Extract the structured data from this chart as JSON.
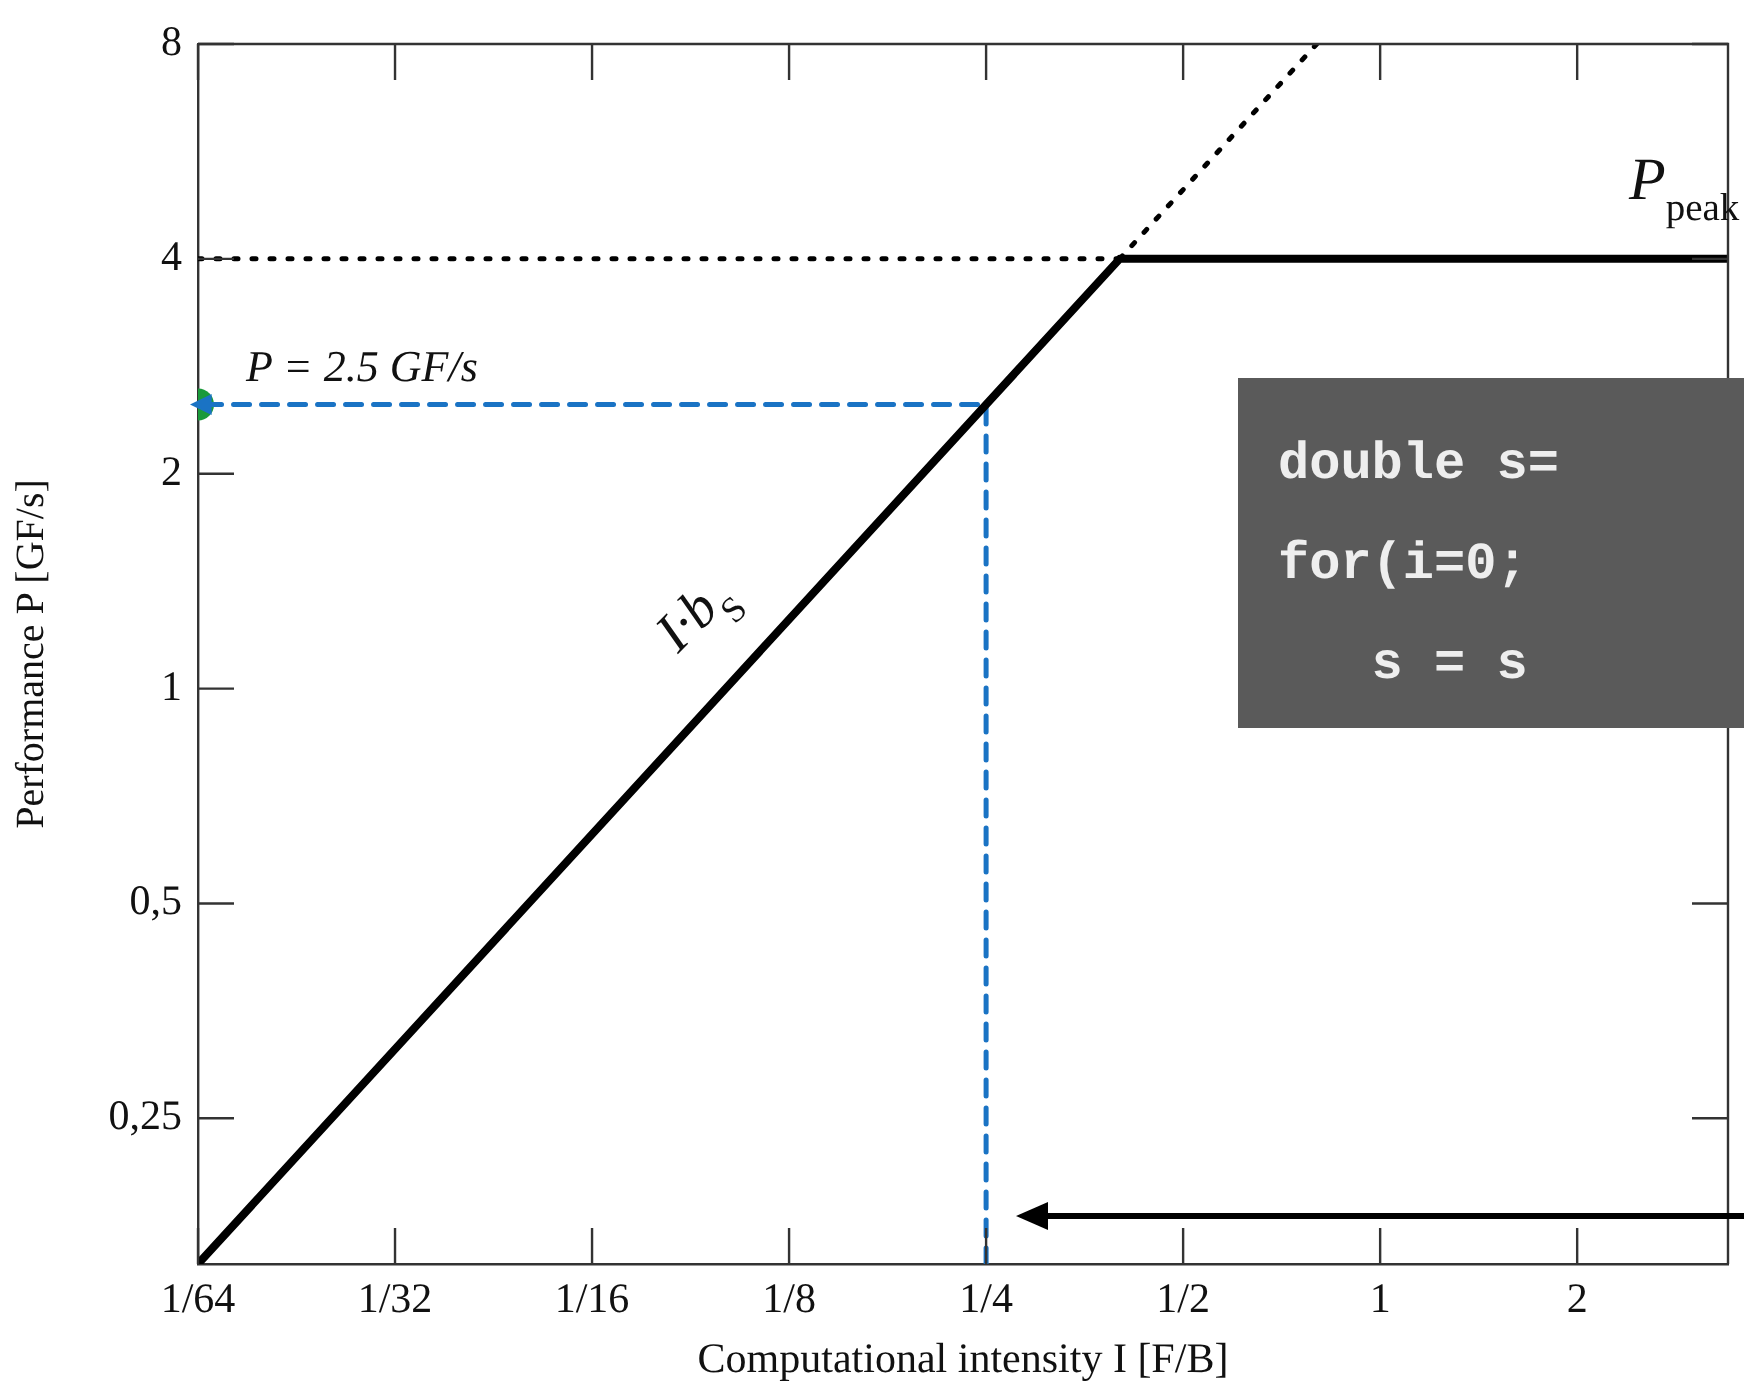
{
  "chart_data": {
    "type": "line",
    "xlabel": "Computational intensity I [F/B]",
    "ylabel": "Performance P [GF/s]",
    "log": "xy",
    "xlim": [
      0.015625,
      3.4
    ],
    "ylim": [
      0.15625,
      8
    ],
    "xticks": [
      {
        "value": 0.015625,
        "label": "1/64"
      },
      {
        "value": 0.03125,
        "label": "1/32"
      },
      {
        "value": 0.0625,
        "label": "1/16"
      },
      {
        "value": 0.125,
        "label": "1/8"
      },
      {
        "value": 0.25,
        "label": "1/4"
      },
      {
        "value": 0.5,
        "label": "1/2"
      },
      1,
      2
    ],
    "yticks": [
      {
        "value": 0.25,
        "label": "0,25"
      },
      {
        "value": 0.5,
        "label": "0,5"
      },
      1,
      2,
      4,
      8
    ],
    "grid": false,
    "legend": false,
    "series": [
      {
        "x": [
          0.015625,
          0.4,
          3.4
        ],
        "values": [
          0.15625,
          4,
          4
        ],
        "color": "#000000",
        "line_style": "solid"
      },
      {
        "x": [
          0.4,
          0.8
        ],
        "values": [
          4,
          8
        ],
        "color": "#000000",
        "line_style": "dotted"
      },
      {
        "x": [
          0.015625,
          0.4
        ],
        "values": [
          4,
          4
        ],
        "color": "#000000",
        "line_style": "dotted"
      },
      {
        "x": [
          0.25,
          0.25,
          0.015625
        ],
        "values": [
          0.15625,
          2.5,
          2.5
        ],
        "color": "#1a73c4",
        "line_style": "dashed"
      },
      {
        "type": "scatter",
        "x": [
          0.015625
        ],
        "values": [
          2.5
        ],
        "color": "#1a9a3a",
        "marker": "circle"
      }
    ],
    "annotations": [
      {
        "text": "P = 2.5 GF/s",
        "x": 0.015625,
        "y": 2.5
      },
      {
        "text": "P$_{peak}$",
        "x": 2.4,
        "y": 4
      },
      "I·b$_{S}$",
      "double s=\nfor(i=0;\n   s = s"
    ]
  }
}
